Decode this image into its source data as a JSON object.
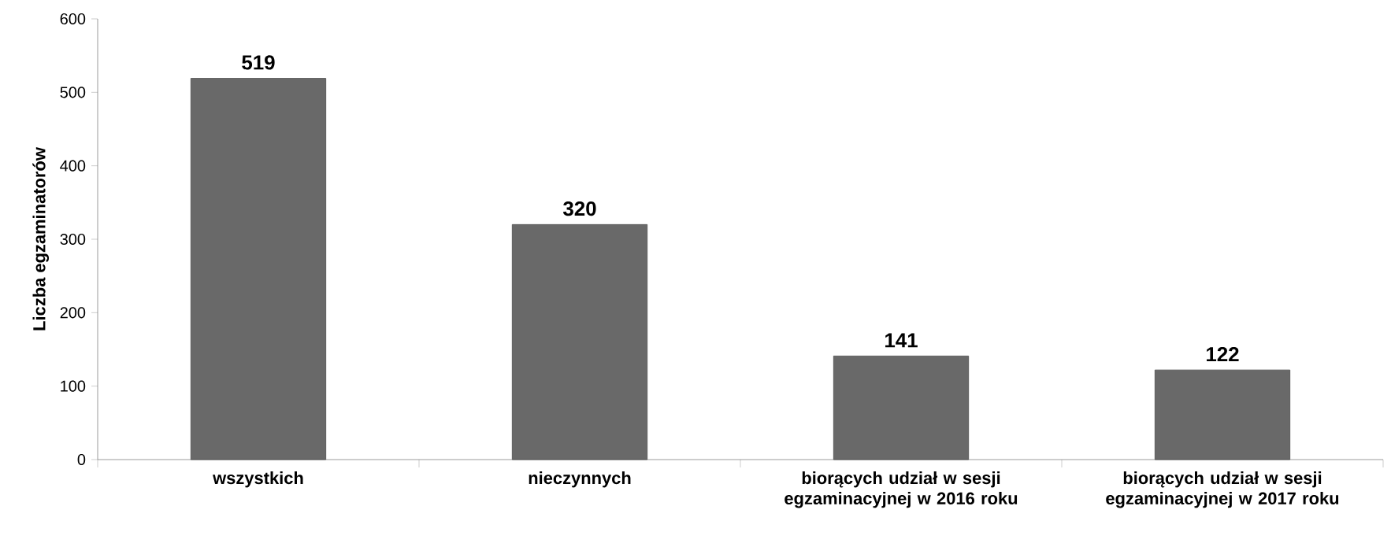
{
  "chart_data": {
    "type": "bar",
    "ylabel": "Liczba egzaminatorów",
    "categories": [
      "wszystkich",
      "nieczynnych",
      "biorących udział w sesji egzaminacyjnej w 2016 roku",
      "biorących udział w sesji egzaminacyjnej w 2017 roku"
    ],
    "values": [
      519,
      320,
      141,
      122
    ],
    "color": "#696969",
    "ylim": [
      0,
      600
    ],
    "yticks": [
      0,
      100,
      200,
      300,
      400,
      500,
      600
    ],
    "data_labels": true
  }
}
